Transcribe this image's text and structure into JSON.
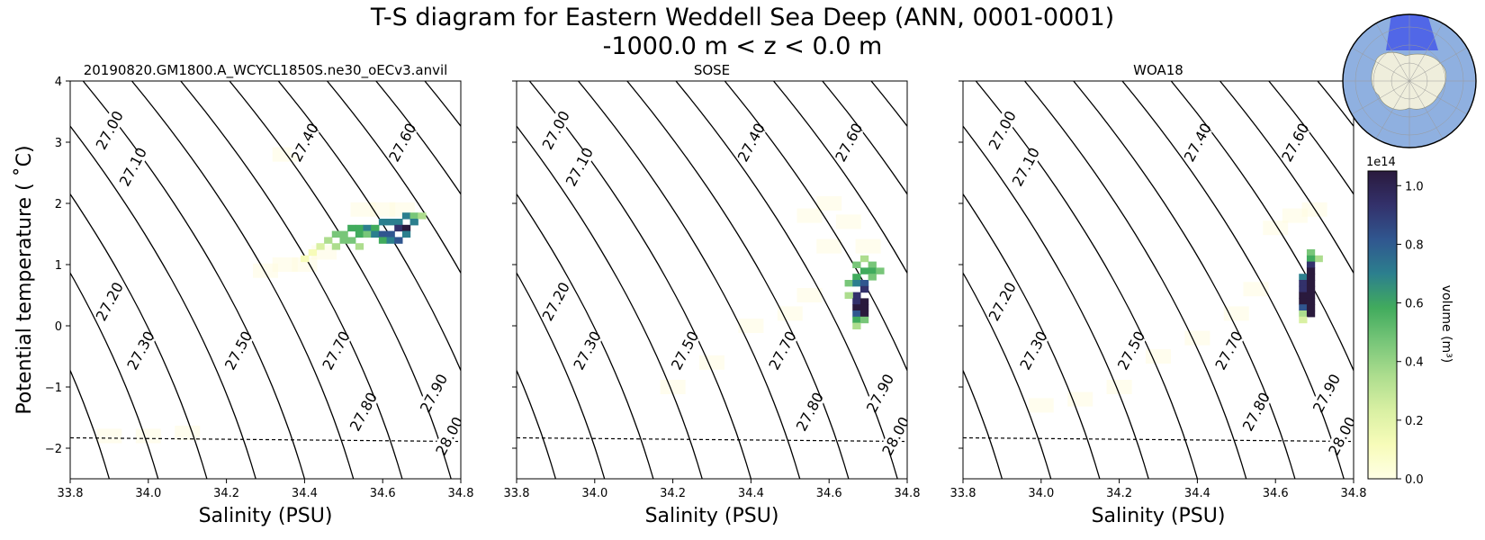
{
  "figure": {
    "title_line1": "T-S diagram for Eastern Weddell Sea Deep (ANN, 0001-0001)",
    "title_line2": "-1000.0 m < z < 0.0 m",
    "ylabel": "Potential temperature ($^\\circ$C)",
    "ylabel_text": "Potential temperature ( ˚C)",
    "colorbar": {
      "label": "volume (m³)",
      "offset_text": "1e14",
      "range": [
        0,
        1.05
      ],
      "ticks": [
        "0.0",
        "0.2",
        "0.4",
        "0.6",
        "0.8",
        "1.0"
      ],
      "colormap": [
        "#ffffe5",
        "#f7fcb9",
        "#d9f0a3",
        "#addd8e",
        "#78c679",
        "#41ab5d",
        "#2c7f8e",
        "#30568f",
        "#33316b",
        "#2a1a3d"
      ]
    },
    "inset_map": {
      "ocean_color": "#8fb0e0",
      "land_color": "#efeedc",
      "region_color": "#4a5fe8"
    }
  },
  "chart_data": [
    {
      "type": "heatmap",
      "title": "20190820.GM1800.A_WCYCL1850S.ne30_oECv3.anvil",
      "xlabel": "Salinity (PSU)",
      "xlim": [
        33.8,
        34.8
      ],
      "ylim": [
        -2.5,
        4
      ],
      "xticks": [
        "33.8",
        "34.0",
        "34.2",
        "34.4",
        "34.6",
        "34.8"
      ],
      "yticks": [
        "−2",
        "−1",
        "0",
        "1",
        "2",
        "3",
        "4"
      ],
      "freezing_line": [
        [
          33.8,
          -1.83
        ],
        [
          34.8,
          -1.89
        ]
      ],
      "contour_labels": [
        {
          "text": "27.00",
          "s": 33.9,
          "t": 3.2
        },
        {
          "text": "27.10",
          "s": 33.96,
          "t": 2.6
        },
        {
          "text": "27.20",
          "s": 33.9,
          "t": 0.4
        },
        {
          "text": "27.30",
          "s": 33.98,
          "t": -0.4
        },
        {
          "text": "27.40",
          "s": 34.4,
          "t": 3.0
        },
        {
          "text": "27.50",
          "s": 34.23,
          "t": -0.4
        },
        {
          "text": "27.60",
          "s": 34.65,
          "t": 3.0
        },
        {
          "text": "27.70",
          "s": 34.48,
          "t": -0.4
        },
        {
          "text": "27.80",
          "s": 34.55,
          "t": -1.4
        },
        {
          "text": "27.90",
          "s": 34.73,
          "t": -1.1
        },
        {
          "text": "28.00",
          "s": 34.77,
          "t": -1.8
        }
      ],
      "cells": [
        [
          34.42,
          1.2,
          0.15
        ],
        [
          34.44,
          1.3,
          0.2
        ],
        [
          34.46,
          1.4,
          0.35
        ],
        [
          34.48,
          1.5,
          0.45
        ],
        [
          34.5,
          1.5,
          0.5
        ],
        [
          34.52,
          1.6,
          0.55
        ],
        [
          34.54,
          1.6,
          0.6
        ],
        [
          34.56,
          1.6,
          0.65
        ],
        [
          34.58,
          1.6,
          0.6
        ],
        [
          34.6,
          1.7,
          0.7
        ],
        [
          34.62,
          1.7,
          0.75
        ],
        [
          34.64,
          1.7,
          0.7
        ],
        [
          34.66,
          1.8,
          0.65
        ],
        [
          34.68,
          1.8,
          0.5
        ],
        [
          34.5,
          1.4,
          0.45
        ],
        [
          34.52,
          1.4,
          0.5
        ],
        [
          34.54,
          1.5,
          0.55
        ],
        [
          34.56,
          1.5,
          0.5
        ],
        [
          34.58,
          1.5,
          0.75
        ],
        [
          34.6,
          1.5,
          0.8
        ],
        [
          34.62,
          1.5,
          0.85
        ],
        [
          34.64,
          1.6,
          0.9
        ],
        [
          34.66,
          1.6,
          1.0
        ],
        [
          34.68,
          1.7,
          0.75
        ],
        [
          34.6,
          1.4,
          0.6
        ],
        [
          34.62,
          1.4,
          0.75
        ],
        [
          34.64,
          1.4,
          0.85
        ],
        [
          34.66,
          1.5,
          0.7
        ],
        [
          34.7,
          1.8,
          0.35
        ],
        [
          34.48,
          1.3,
          0.35
        ],
        [
          34.54,
          1.3,
          0.4
        ],
        [
          34.4,
          1.1,
          0.12
        ]
      ],
      "faint_cells": [
        [
          34.3,
          0.9
        ],
        [
          34.35,
          1.0
        ],
        [
          34.4,
          1.0
        ],
        [
          34.45,
          1.2
        ],
        [
          34.55,
          1.9
        ],
        [
          34.6,
          1.9
        ],
        [
          34.65,
          1.9
        ],
        [
          34.35,
          2.8
        ],
        [
          34.0,
          -1.8
        ],
        [
          33.9,
          -1.8
        ],
        [
          34.1,
          -1.75
        ]
      ]
    },
    {
      "type": "heatmap",
      "title": "SOSE",
      "xlabel": "Salinity (PSU)",
      "xlim": [
        33.8,
        34.8
      ],
      "ylim": [
        -2.5,
        4
      ],
      "xticks": [
        "33.8",
        "34.0",
        "34.2",
        "34.4",
        "34.6",
        "34.8"
      ],
      "yticks": [
        "",
        "",
        "",
        "",
        "",
        "",
        ""
      ],
      "freezing_line": [
        [
          33.8,
          -1.83
        ],
        [
          34.8,
          -1.89
        ]
      ],
      "contour_labels": [
        {
          "text": "27.00",
          "s": 33.9,
          "t": 3.2
        },
        {
          "text": "27.10",
          "s": 33.96,
          "t": 2.6
        },
        {
          "text": "27.20",
          "s": 33.9,
          "t": 0.4
        },
        {
          "text": "27.30",
          "s": 33.98,
          "t": -0.4
        },
        {
          "text": "27.40",
          "s": 34.4,
          "t": 3.0
        },
        {
          "text": "27.50",
          "s": 34.23,
          "t": -0.4
        },
        {
          "text": "27.60",
          "s": 34.65,
          "t": 3.0
        },
        {
          "text": "27.70",
          "s": 34.48,
          "t": -0.4
        },
        {
          "text": "27.80",
          "s": 34.55,
          "t": -1.4
        },
        {
          "text": "27.90",
          "s": 34.73,
          "t": -1.1
        },
        {
          "text": "28.00",
          "s": 34.77,
          "t": -1.8
        }
      ],
      "cells": [
        [
          34.67,
          1.0,
          0.45
        ],
        [
          34.69,
          1.1,
          0.4
        ],
        [
          34.71,
          1.0,
          0.5
        ],
        [
          34.71,
          0.9,
          0.55
        ],
        [
          34.69,
          0.9,
          0.6
        ],
        [
          34.67,
          0.8,
          0.55
        ],
        [
          34.65,
          0.7,
          0.5
        ],
        [
          34.67,
          0.7,
          0.75
        ],
        [
          34.69,
          0.7,
          0.8
        ],
        [
          34.69,
          0.6,
          0.95
        ],
        [
          34.67,
          0.5,
          0.9
        ],
        [
          34.65,
          0.5,
          0.35
        ],
        [
          34.67,
          0.4,
          0.95
        ],
        [
          34.69,
          0.4,
          1.0
        ],
        [
          34.67,
          0.3,
          1.0
        ],
        [
          34.69,
          0.3,
          1.0
        ],
        [
          34.67,
          0.2,
          0.8
        ],
        [
          34.69,
          0.2,
          1.0
        ],
        [
          34.67,
          0.1,
          0.6
        ],
        [
          34.69,
          0.1,
          0.45
        ],
        [
          34.67,
          0.0,
          0.35
        ],
        [
          34.71,
          0.8,
          0.5
        ],
        [
          34.73,
          0.9,
          0.45
        ]
      ],
      "faint_cells": [
        [
          34.55,
          1.8
        ],
        [
          34.6,
          2.0
        ],
        [
          34.65,
          1.7
        ],
        [
          34.55,
          0.5
        ],
        [
          34.5,
          0.2
        ],
        [
          34.4,
          0.0
        ],
        [
          34.3,
          -0.6
        ],
        [
          34.2,
          -1.0
        ],
        [
          34.6,
          1.3
        ],
        [
          34.7,
          1.3
        ]
      ]
    },
    {
      "type": "heatmap",
      "title": "WOA18",
      "xlabel": "Salinity (PSU)",
      "xlim": [
        33.8,
        34.8
      ],
      "ylim": [
        -2.5,
        4
      ],
      "xticks": [
        "33.8",
        "34.0",
        "34.2",
        "34.4",
        "34.6",
        "34.8"
      ],
      "yticks": [
        "",
        "",
        "",
        "",
        "",
        "",
        ""
      ],
      "freezing_line": [
        [
          33.8,
          -1.83
        ],
        [
          34.8,
          -1.89
        ]
      ],
      "contour_labels": [
        {
          "text": "27.00",
          "s": 33.9,
          "t": 3.2
        },
        {
          "text": "27.10",
          "s": 33.96,
          "t": 2.6
        },
        {
          "text": "27.20",
          "s": 33.9,
          "t": 0.4
        },
        {
          "text": "27.30",
          "s": 33.98,
          "t": -0.4
        },
        {
          "text": "27.40",
          "s": 34.4,
          "t": 3.0
        },
        {
          "text": "27.50",
          "s": 34.23,
          "t": -0.4
        },
        {
          "text": "27.60",
          "s": 34.65,
          "t": 3.0
        },
        {
          "text": "27.70",
          "s": 34.48,
          "t": -0.4
        },
        {
          "text": "27.80",
          "s": 34.55,
          "t": -1.4
        },
        {
          "text": "27.90",
          "s": 34.73,
          "t": -1.1
        },
        {
          "text": "28.00",
          "s": 34.77,
          "t": -1.8
        }
      ],
      "cells": [
        [
          34.69,
          1.2,
          0.45
        ],
        [
          34.71,
          1.1,
          0.35
        ],
        [
          34.69,
          1.1,
          0.6
        ],
        [
          34.69,
          1.0,
          0.9
        ],
        [
          34.69,
          0.9,
          1.0
        ],
        [
          34.67,
          0.8,
          0.75
        ],
        [
          34.69,
          0.8,
          1.0
        ],
        [
          34.67,
          0.7,
          0.9
        ],
        [
          34.69,
          0.7,
          1.0
        ],
        [
          34.67,
          0.6,
          0.95
        ],
        [
          34.69,
          0.6,
          1.0
        ],
        [
          34.67,
          0.5,
          1.0
        ],
        [
          34.69,
          0.5,
          1.0
        ],
        [
          34.67,
          0.4,
          1.0
        ],
        [
          34.69,
          0.4,
          1.0
        ],
        [
          34.67,
          0.3,
          0.85
        ],
        [
          34.69,
          0.3,
          1.0
        ],
        [
          34.67,
          0.2,
          0.3
        ],
        [
          34.69,
          0.2,
          1.0
        ],
        [
          34.67,
          0.1,
          0.25
        ]
      ],
      "faint_cells": [
        [
          34.65,
          1.8
        ],
        [
          34.7,
          1.9
        ],
        [
          34.6,
          1.6
        ],
        [
          34.55,
          0.6
        ],
        [
          34.5,
          0.2
        ],
        [
          34.4,
          -0.2
        ],
        [
          34.3,
          -0.5
        ],
        [
          34.2,
          -1.0
        ],
        [
          34.1,
          -1.2
        ],
        [
          34.0,
          -1.3
        ]
      ]
    }
  ]
}
